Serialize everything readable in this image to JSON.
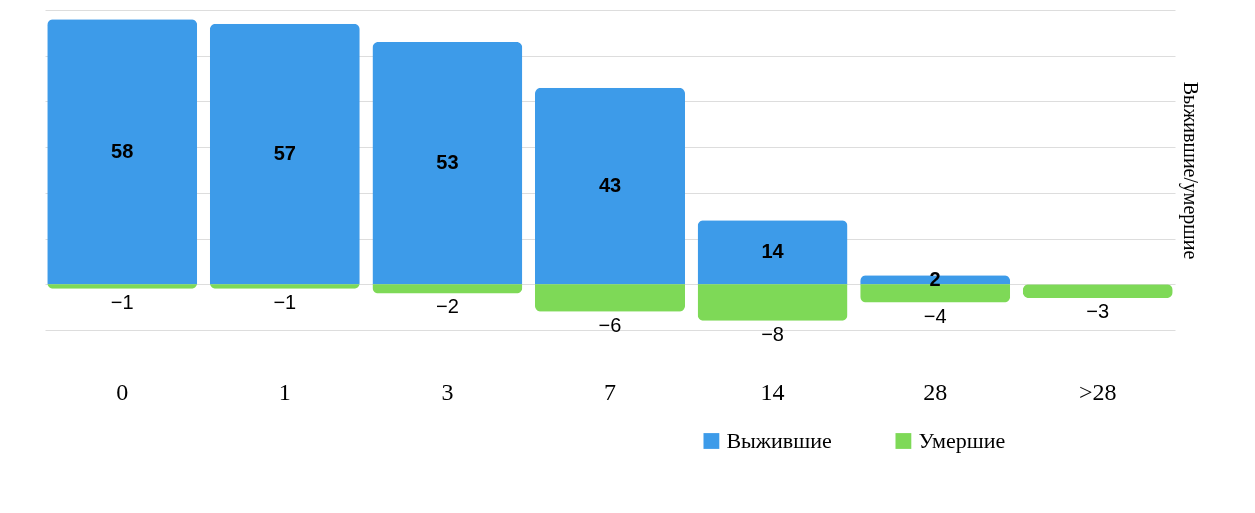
{
  "chart_data": {
    "type": "bar",
    "stacked": true,
    "ylabel": "Выжившие/умершие",
    "categories": [
      "0",
      "1",
      "3",
      "7",
      "14",
      "28",
      ">28"
    ],
    "series": [
      {
        "name": "Выжившие",
        "color": "#3d9be9",
        "values": [
          58,
          57,
          53,
          43,
          14,
          2,
          null
        ]
      },
      {
        "name": "Умершие",
        "color": "#7ed957",
        "values": [
          -1,
          -1,
          -2,
          -6,
          -8,
          -4,
          -3
        ]
      }
    ],
    "ylim": [
      -10,
      60
    ],
    "yticks": [
      {
        "value": -10,
        "label": null
      },
      {
        "value": 0,
        "label": null
      },
      {
        "value": 10,
        "label": null
      },
      {
        "value": 20,
        "label": null
      },
      {
        "value": 30,
        "label": null
      },
      {
        "value": 40,
        "label": null
      },
      {
        "value": 50,
        "label": null
      },
      {
        "value": 60,
        "label": null
      }
    ],
    "grid": "y",
    "data_labels": true,
    "legend": "bottom right",
    "tick_labels": "x"
  }
}
